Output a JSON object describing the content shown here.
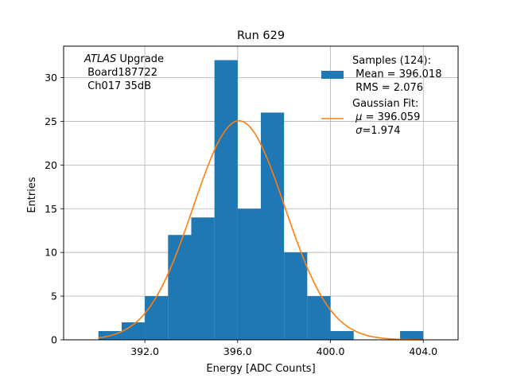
{
  "chart_data": {
    "type": "bar",
    "title": "Run 629",
    "xlabel": "Energy [ADC Counts]",
    "ylabel": "Entries",
    "xlim": [
      388.5,
      405.5
    ],
    "ylim": [
      0,
      33.6
    ],
    "xticks": [
      392.0,
      396.0,
      400.0,
      404.0
    ],
    "xtick_labels": [
      "392.0",
      "396.0",
      "400.0",
      "404.0"
    ],
    "yticks": [
      0,
      5,
      10,
      15,
      20,
      25,
      30
    ],
    "ytick_labels": [
      "0",
      "5",
      "10",
      "15",
      "20",
      "25",
      "30"
    ],
    "grid": true,
    "histogram": {
      "name": "Samples (124)",
      "bin_width": 1,
      "bins": [
        {
          "left": 390,
          "count": 1
        },
        {
          "left": 391,
          "count": 2
        },
        {
          "left": 392,
          "count": 5
        },
        {
          "left": 393,
          "count": 12
        },
        {
          "left": 394,
          "count": 14
        },
        {
          "left": 395,
          "count": 32
        },
        {
          "left": 396,
          "count": 15
        },
        {
          "left": 397,
          "count": 26
        },
        {
          "left": 398,
          "count": 10
        },
        {
          "left": 399,
          "count": 5
        },
        {
          "left": 400,
          "count": 1
        },
        {
          "left": 403,
          "count": 1
        }
      ]
    },
    "fit": {
      "name": "Gaussian Fit",
      "mu": 396.059,
      "sigma": 1.974,
      "amplitude": 25.06,
      "x_range": [
        390,
        404
      ]
    },
    "colors": {
      "bars": "#1f77b4",
      "fit": "#ff7f0e",
      "grid": "#b0b0b0"
    },
    "legend_position": "top-right"
  },
  "annotation": {
    "experiment": "ATLAS",
    "experiment_suffix": " Upgrade",
    "board": " Board187722",
    "channel": " Ch017 35dB"
  },
  "legend": {
    "samples_title": "Samples (124):",
    "samples_mean": " Mean = 396.018",
    "samples_rms": " RMS = 2.076",
    "fit_title": "Gaussian Fit:",
    "fit_mu_symbol": "μ",
    "fit_mu_value": " = 396.059",
    "fit_sigma_symbol": "σ",
    "fit_sigma_value": "=1.974"
  }
}
